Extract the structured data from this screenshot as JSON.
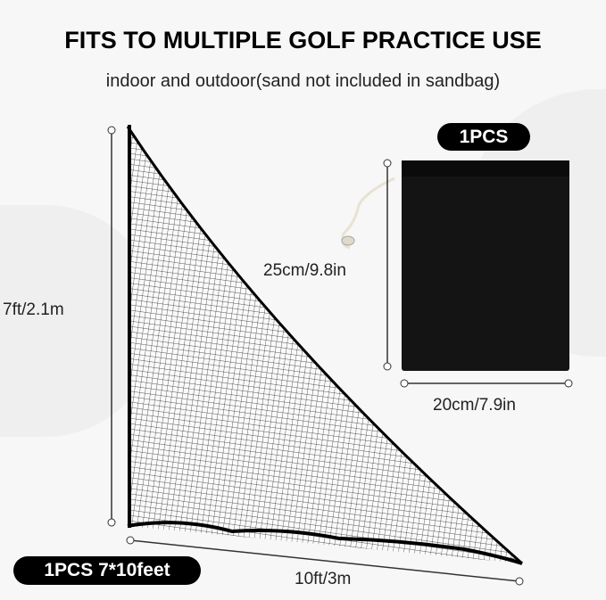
{
  "header": {
    "title": "FITS TO MULTIPLE GOLF PRACTICE USE",
    "subtitle": "indoor and outdoor(sand not included in sandbag)"
  },
  "sandbag": {
    "badge": "1PCS",
    "height_label": "25cm/9.8in",
    "width_label": "20cm/7.9in",
    "color": "#141414"
  },
  "net": {
    "badge": "1PCS 7*10feet",
    "height_label": "7ft/2.1m",
    "width_label": "10ft/3m"
  }
}
